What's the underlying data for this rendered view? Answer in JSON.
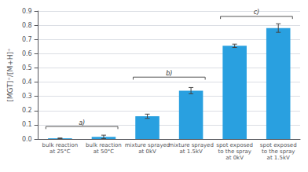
{
  "chart_data": {
    "type": "bar",
    "categories": [
      "bulk reaction\nat 25°C",
      "bulk reaction\nat 50°C",
      "mixture sprayed\nat 0kV",
      "mixture sprayed\nat 1.5kV",
      "spot exposed\nto the spray\nat 0kV",
      "spot exposed\nto the spray\nat 1.5kV"
    ],
    "values": [
      0.005,
      0.015,
      0.16,
      0.34,
      0.655,
      0.78
    ],
    "errors": [
      0.002,
      0.012,
      0.015,
      0.022,
      0.012,
      0.03
    ],
    "color": "#29a0e0",
    "ylabel": "[MGT]⁺/[M+H]⁺",
    "ylim": [
      0,
      0.9
    ],
    "yticks": [
      {
        "value": 0,
        "label": "0.0"
      },
      0.1,
      0.2,
      0.3,
      0.4,
      0.5,
      0.6,
      0.7,
      0.8,
      0.9
    ],
    "grid": true,
    "annotations": [
      {
        "text": "a)",
        "y": 0.088,
        "categories": [
          "bulk reaction\nat 25°C",
          "bulk reaction\nat 50°C"
        ]
      },
      {
        "text": "b)",
        "y": 0.435,
        "categories": [
          "mixture sprayed\nat 0kV",
          "mixture sprayed\nat 1.5kV"
        ]
      },
      {
        "text": "c)",
        "y": 0.862,
        "categories": [
          "spot exposed\nto the spray\nat 0kV",
          "spot exposed\nto the spray\nat 1.5kV"
        ]
      }
    ]
  }
}
